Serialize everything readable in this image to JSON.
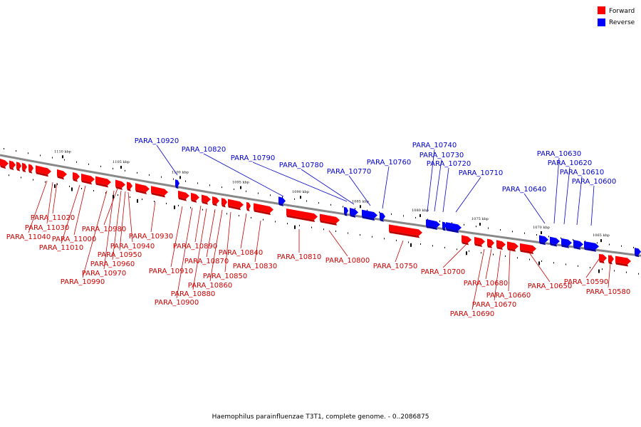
{
  "caption": "Haemophilus parainfluenzae T3T1, complete genome. - 0..2086875",
  "legend": [
    {
      "label": "Forward",
      "color": "#ff0000"
    },
    {
      "label": "Reverse",
      "color": "#0000ff"
    }
  ],
  "colors": {
    "forward": "#ff0000",
    "reverse": "#0000ff",
    "forward_label": "#cc0000",
    "reverse_label": "#0000cc",
    "backbone": "#888888"
  },
  "ruler_ticks": [
    "1110 kbp",
    "1105 kbp",
    "1100 kbp",
    "1095 kbp",
    "1090 kbp",
    "1085 kbp",
    "1080 kbp",
    "1075 kbp",
    "1070 kbp",
    "1065 kbp"
  ],
  "reverse_genes": [
    "PARA_10920",
    "PARA_10820",
    "PARA_10790",
    "PARA_10780",
    "PARA_10770",
    "PARA_10760",
    "PARA_10740",
    "PARA_10730",
    "PARA_10720",
    "PARA_10710",
    "PARA_10640",
    "PARA_10630",
    "PARA_10620",
    "PARA_10610",
    "PARA_10600"
  ],
  "forward_genes": [
    "PARA_11020",
    "PARA_11030",
    "PARA_11040",
    "PARA_11000",
    "PARA_11010",
    "PARA_10980",
    "PARA_10940",
    "PARA_10950",
    "PARA_10960",
    "PARA_10970",
    "PARA_10990",
    "PARA_10930",
    "PARA_10890",
    "PARA_10910",
    "PARA_10870",
    "PARA_10880",
    "PARA_10900",
    "PARA_10860",
    "PARA_10850",
    "PARA_10840",
    "PARA_10830",
    "PARA_10810",
    "PARA_10800",
    "PARA_10750",
    "PARA_10700",
    "PARA_10680",
    "PARA_10660",
    "PARA_10670",
    "PARA_10690",
    "PARA_10650",
    "PARA_10590",
    "PARA_10580"
  ]
}
